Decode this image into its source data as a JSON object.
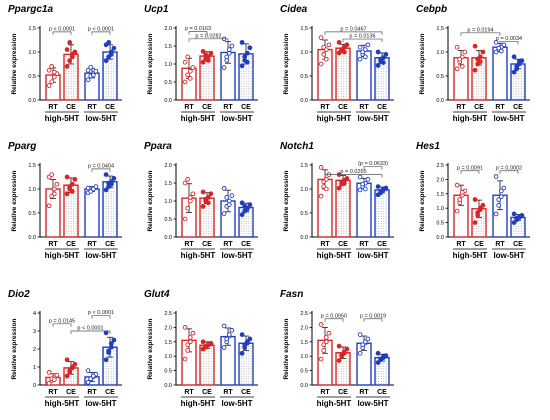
{
  "colors": {
    "rt": "#d62728",
    "ce_high": "#d62728",
    "low": "#1f3fbf",
    "hatch": "#bbbbbb",
    "axis": "#000000",
    "bracket": "#555555"
  },
  "chart_data": [
    {
      "type": "bar",
      "title": "Ppargc1a",
      "ylabel": "Relative expression",
      "ylim": [
        0,
        1.5
      ],
      "yticks": [
        "0.0",
        "0.5",
        "1.0",
        "1.5"
      ],
      "categories": [
        "RT",
        "CE",
        "RT",
        "CE"
      ],
      "groups": [
        "high-5HT",
        "low-5HT"
      ],
      "values": [
        0.52,
        0.95,
        0.56,
        1.0
      ],
      "errors": [
        0.15,
        0.2,
        0.1,
        0.15
      ],
      "points": [
        [
          0.3,
          0.38,
          0.48,
          0.55,
          0.62,
          0.7,
          0.58
        ],
        [
          0.7,
          0.82,
          0.9,
          1.0,
          1.05,
          1.2,
          0.95
        ],
        [
          0.42,
          0.5,
          0.55,
          0.6,
          0.62,
          0.68,
          0.52
        ],
        [
          0.82,
          0.9,
          1.0,
          1.08,
          1.15,
          1.2,
          0.95
        ]
      ],
      "comparisons": [
        {
          "from": 0,
          "to": 1,
          "label": "p < 0.0001",
          "y": 1.42
        },
        {
          "from": 2,
          "to": 3,
          "label": "p < 0.0001",
          "y": 1.42
        }
      ]
    },
    {
      "type": "bar",
      "title": "Ucp1",
      "ylabel": "Relative expression",
      "ylim": [
        0,
        2.0
      ],
      "yticks": [
        "0.0",
        "0.5",
        "1.0",
        "1.5",
        "2.0"
      ],
      "categories": [
        "RT",
        "CE",
        "RT",
        "CE"
      ],
      "groups": [
        "high-5HT",
        "low-5HT"
      ],
      "values": [
        0.88,
        1.22,
        1.32,
        1.28
      ],
      "errors": [
        0.28,
        0.12,
        0.3,
        0.28
      ],
      "points": [
        [
          0.5,
          0.7,
          0.8,
          0.9,
          1.05,
          1.2,
          0.6
        ],
        [
          1.05,
          1.15,
          1.2,
          1.3,
          1.35,
          1.25,
          1.1
        ],
        [
          0.9,
          1.1,
          1.3,
          1.5,
          1.7,
          1.2,
          1.4
        ],
        [
          0.95,
          1.1,
          1.3,
          1.45,
          1.6,
          1.2,
          1.05
        ]
      ],
      "comparisons": [
        {
          "from": 0,
          "to": 1,
          "label": "p = 0.0163",
          "y": 1.9
        },
        {
          "from": 0,
          "to": 2,
          "label": "p = 0.0282",
          "y": 1.7
        }
      ]
    },
    {
      "type": "bar",
      "title": "Cidea",
      "ylabel": "Relative expression",
      "ylim": [
        0,
        1.5
      ],
      "yticks": [
        "0.0",
        "0.5",
        "1.0",
        "1.5"
      ],
      "categories": [
        "RT",
        "CE",
        "RT",
        "CE"
      ],
      "groups": [
        "high-5HT",
        "low-5HT"
      ],
      "values": [
        1.05,
        1.08,
        1.02,
        0.88
      ],
      "errors": [
        0.2,
        0.08,
        0.12,
        0.1
      ],
      "points": [
        [
          0.75,
          0.95,
          1.05,
          1.15,
          1.3,
          1.1,
          0.85
        ],
        [
          0.98,
          1.05,
          1.1,
          1.15,
          1.2,
          1.05,
          1.0
        ],
        [
          0.85,
          0.95,
          1.05,
          1.15,
          1.1,
          1.0,
          0.9
        ],
        [
          0.72,
          0.8,
          0.88,
          0.95,
          1.0,
          0.85,
          0.78
        ]
      ],
      "comparisons": [
        {
          "from": 0,
          "to": 3,
          "label": "p = 0.0467",
          "y": 1.42
        },
        {
          "from": 1,
          "to": 3,
          "label": "p = 0.0136",
          "y": 1.27
        }
      ]
    },
    {
      "type": "bar",
      "title": "Cebpb",
      "ylabel": "Relative expression",
      "ylim": [
        0,
        1.5
      ],
      "yticks": [
        "0.0",
        "0.5",
        "1.0",
        "1.5"
      ],
      "categories": [
        "RT",
        "CE",
        "RT",
        "CE"
      ],
      "groups": [
        "high-5HT",
        "low-5HT"
      ],
      "values": [
        0.88,
        0.88,
        1.1,
        0.75
      ],
      "errors": [
        0.15,
        0.15,
        0.08,
        0.1
      ],
      "points": [
        [
          0.65,
          0.8,
          0.9,
          1.0,
          1.1,
          0.85,
          0.7
        ],
        [
          0.62,
          0.75,
          0.9,
          1.0,
          1.12,
          0.85,
          0.8
        ],
        [
          1.0,
          1.05,
          1.1,
          1.15,
          1.2,
          1.08,
          1.02
        ],
        [
          0.58,
          0.65,
          0.75,
          0.82,
          0.9,
          0.7,
          0.8
        ]
      ],
      "comparisons": [
        {
          "from": 0,
          "to": 2,
          "label": "p = 0.0194",
          "y": 1.4
        },
        {
          "from": 2,
          "to": 3,
          "label": "p = 0.0034",
          "y": 1.22
        }
      ]
    },
    {
      "type": "bar",
      "title": "Pparg",
      "ylabel": "Relative expression",
      "ylim": [
        0,
        1.5
      ],
      "yticks": [
        "0.0",
        "0.5",
        "1.0",
        "1.5"
      ],
      "categories": [
        "RT",
        "CE",
        "RT",
        "CE"
      ],
      "groups": [
        "high-5HT",
        "low-5HT"
      ],
      "values": [
        1.0,
        1.08,
        1.0,
        1.15
      ],
      "errors": [
        0.2,
        0.15,
        0.05,
        0.12
      ],
      "points": [
        [
          0.65,
          0.85,
          1.0,
          1.1,
          1.25,
          1.3,
          0.9
        ],
        [
          0.9,
          1.0,
          1.1,
          1.2,
          1.25,
          1.05,
          0.95
        ],
        [
          0.92,
          0.98,
          1.0,
          1.05,
          1.02,
          0.95,
          1.0
        ],
        [
          0.98,
          1.05,
          1.15,
          1.22,
          1.3,
          1.12,
          1.1
        ]
      ],
      "comparisons": [
        {
          "from": 2,
          "to": 3,
          "label": "p = 0.0404",
          "y": 1.42
        }
      ]
    },
    {
      "type": "bar",
      "title": "Ppara",
      "ylabel": "Relative expression",
      "ylim": [
        0,
        2.0
      ],
      "yticks": [
        "0.0",
        "0.5",
        "1.0",
        "1.5",
        "2.0"
      ],
      "categories": [
        "RT",
        "CE",
        "RT",
        "CE"
      ],
      "groups": [
        "high-5HT",
        "low-5HT"
      ],
      "values": [
        1.08,
        1.08,
        1.0,
        0.82
      ],
      "errors": [
        0.4,
        0.15,
        0.3,
        0.12
      ],
      "points": [
        [
          0.5,
          0.8,
          1.0,
          1.2,
          1.5,
          1.6,
          1.1
        ],
        [
          0.85,
          1.0,
          1.1,
          1.2,
          1.25,
          1.05,
          0.95
        ],
        [
          0.65,
          0.85,
          1.0,
          1.15,
          1.35,
          1.1,
          0.9
        ],
        [
          0.62,
          0.72,
          0.8,
          0.9,
          0.95,
          0.85,
          0.78
        ]
      ],
      "comparisons": []
    },
    {
      "type": "bar",
      "title": "Notch1",
      "ylabel": "Relative expression",
      "ylim": [
        0,
        1.5
      ],
      "yticks": [
        "0.0",
        "0.5",
        "1.0",
        "1.5"
      ],
      "categories": [
        "RT",
        "CE",
        "RT",
        "CE"
      ],
      "groups": [
        "high-5HT",
        "low-5HT"
      ],
      "values": [
        1.2,
        1.18,
        1.12,
        0.98
      ],
      "errors": [
        0.2,
        0.1,
        0.1,
        0.06
      ],
      "points": [
        [
          0.85,
          1.05,
          1.2,
          1.3,
          1.45,
          1.15,
          1.0
        ],
        [
          1.02,
          1.1,
          1.18,
          1.22,
          1.3,
          1.15,
          1.12
        ],
        [
          0.98,
          1.05,
          1.12,
          1.2,
          1.25,
          1.1,
          1.0
        ],
        [
          0.88,
          0.92,
          0.98,
          1.02,
          1.05,
          0.95,
          1.0
        ]
      ],
      "comparisons": [
        {
          "from": 2,
          "to": 3,
          "label": "(p = 0.0633)",
          "y": 1.47
        },
        {
          "from": 0,
          "to": 3,
          "label": "p = 0.0265",
          "y": 1.3
        }
      ]
    },
    {
      "type": "bar",
      "title": "Hes1",
      "ylabel": "Relative expression",
      "ylim": [
        0,
        2.5
      ],
      "yticks": [
        "0.0",
        "0.5",
        "1.0",
        "1.5",
        "2.0",
        "2.5"
      ],
      "categories": [
        "RT",
        "CE",
        "RT",
        "CE"
      ],
      "groups": [
        "high-5HT",
        "low-5HT"
      ],
      "values": [
        1.45,
        0.98,
        1.45,
        0.68
      ],
      "errors": [
        0.35,
        0.3,
        0.5,
        0.1
      ],
      "points": [
        [
          0.9,
          1.2,
          1.45,
          1.6,
          1.8,
          1.3,
          1.55
        ],
        [
          0.5,
          0.75,
          0.95,
          1.1,
          1.3,
          0.85,
          1.0
        ],
        [
          0.8,
          1.1,
          1.4,
          1.7,
          2.1,
          1.3,
          1.6
        ],
        [
          0.5,
          0.6,
          0.68,
          0.75,
          0.8,
          0.65,
          0.7
        ]
      ],
      "comparisons": [
        {
          "from": 0,
          "to": 1,
          "label": "p = 0.0091",
          "y": 2.3
        },
        {
          "from": 2,
          "to": 3,
          "label": "p = 0.0002",
          "y": 2.3
        }
      ]
    },
    {
      "type": "bar",
      "title": "Dio2",
      "ylabel": "Relative expression",
      "ylim": [
        0,
        4
      ],
      "yticks": [
        "0",
        "1",
        "2",
        "3",
        "4"
      ],
      "categories": [
        "RT",
        "CE",
        "RT",
        "CE"
      ],
      "groups": [
        "high-5HT",
        "low-5HT"
      ],
      "values": [
        0.42,
        0.95,
        0.45,
        2.1
      ],
      "errors": [
        0.2,
        0.35,
        0.25,
        0.55
      ],
      "points": [
        [
          0.1,
          0.25,
          0.4,
          0.55,
          0.7,
          0.35,
          0.3
        ],
        [
          0.5,
          0.7,
          0.95,
          1.15,
          1.4,
          0.8,
          1.0
        ],
        [
          0.15,
          0.3,
          0.45,
          0.6,
          0.8,
          0.35,
          0.5
        ],
        [
          1.4,
          1.8,
          2.1,
          2.5,
          2.9,
          1.9,
          2.3
        ]
      ],
      "comparisons": [
        {
          "from": 2,
          "to": 3,
          "label": "p < 0.0001",
          "y": 3.85
        },
        {
          "from": 0,
          "to": 1,
          "label": "p = 0.0145",
          "y": 3.4
        },
        {
          "from": 1,
          "to": 3,
          "label": "p < 0.0001",
          "y": 3.0
        }
      ]
    },
    {
      "type": "bar",
      "title": "Glut4",
      "ylabel": "Relative expression",
      "ylim": [
        0,
        2.5
      ],
      "yticks": [
        "0.0",
        "0.5",
        "1.0",
        "1.5",
        "2.0",
        "2.5"
      ],
      "categories": [
        "RT",
        "CE",
        "RT",
        "CE"
      ],
      "groups": [
        "high-5HT",
        "low-5HT"
      ],
      "values": [
        1.55,
        1.38,
        1.68,
        1.45
      ],
      "errors": [
        0.4,
        0.12,
        0.3,
        0.25
      ],
      "points": [
        [
          0.9,
          1.2,
          1.5,
          1.8,
          2.0,
          1.4,
          1.65
        ],
        [
          1.25,
          1.32,
          1.4,
          1.45,
          1.5,
          1.35,
          1.38
        ],
        [
          1.3,
          1.5,
          1.7,
          1.9,
          2.05,
          1.6,
          1.75
        ],
        [
          1.1,
          1.3,
          1.45,
          1.6,
          1.75,
          1.4,
          1.5
        ]
      ],
      "comparisons": []
    },
    {
      "type": "bar",
      "title": "Fasn",
      "ylabel": "Relative expression",
      "ylim": [
        0,
        2.5
      ],
      "yticks": [
        "0.0",
        "0.5",
        "1.0",
        "1.5",
        "2.0",
        "2.5"
      ],
      "categories": [
        "RT",
        "CE",
        "RT",
        "CE"
      ],
      "groups": [
        "high-5HT",
        "low-5HT"
      ],
      "values": [
        1.55,
        1.12,
        1.45,
        0.95
      ],
      "errors": [
        0.45,
        0.2,
        0.25,
        0.12
      ],
      "points": [
        [
          0.9,
          1.2,
          1.5,
          1.8,
          2.1,
          1.4,
          1.65
        ],
        [
          0.85,
          1.0,
          1.1,
          1.25,
          1.35,
          1.05,
          1.15
        ],
        [
          1.1,
          1.3,
          1.45,
          1.6,
          1.75,
          1.4,
          1.5
        ],
        [
          0.78,
          0.88,
          0.95,
          1.02,
          1.1,
          0.9,
          0.98
        ]
      ],
      "comparisons": [
        {
          "from": 0,
          "to": 1,
          "label": "p = 0.0050",
          "y": 2.3
        },
        {
          "from": 2,
          "to": 3,
          "label": "p = 0.0019",
          "y": 2.3
        }
      ]
    }
  ]
}
